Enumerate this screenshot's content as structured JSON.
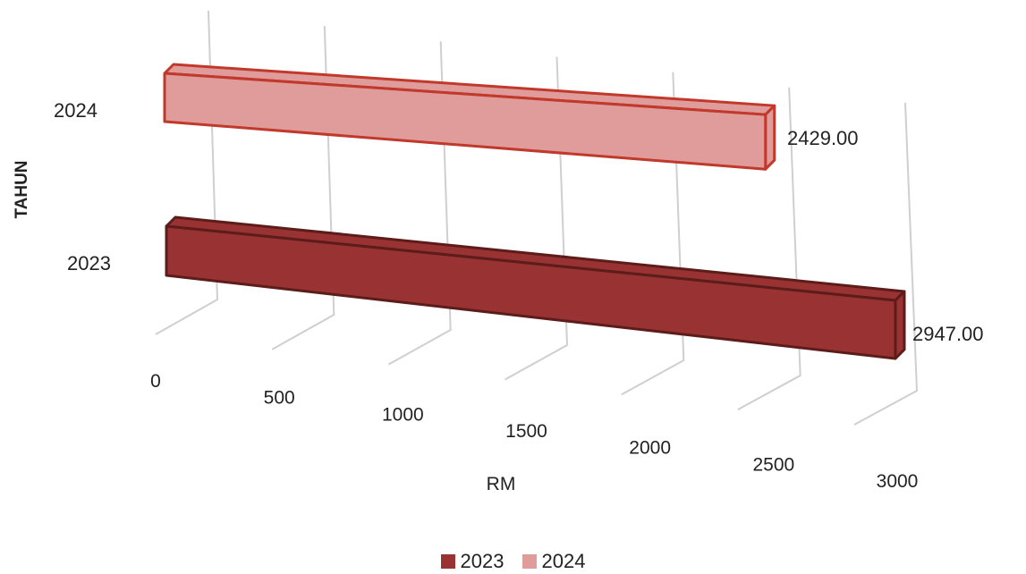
{
  "chart_data": {
    "type": "bar",
    "orientation": "horizontal",
    "style": "3d",
    "categories": [
      "2023",
      "2024"
    ],
    "series": [
      {
        "name": "2023",
        "category": "2023",
        "value": 2947.0,
        "label": "2947.00",
        "color": "#993333",
        "edge_color": "#5c1c1a"
      },
      {
        "name": "2024",
        "category": "2024",
        "value": 2429.0,
        "label": "2429.00",
        "color": "#e09b9b",
        "edge_color": "#c0392b"
      }
    ],
    "xlabel": "RM",
    "ylabel": "TAHUN",
    "xlim": [
      0,
      3000
    ],
    "x_ticks": [
      "0",
      "500",
      "1000",
      "1500",
      "2000",
      "2500",
      "3000"
    ],
    "grid": true,
    "legend": {
      "position": "bottom",
      "entries": [
        {
          "label": "2023",
          "color": "#993333"
        },
        {
          "label": "2024",
          "color": "#e09b9b"
        }
      ]
    }
  }
}
